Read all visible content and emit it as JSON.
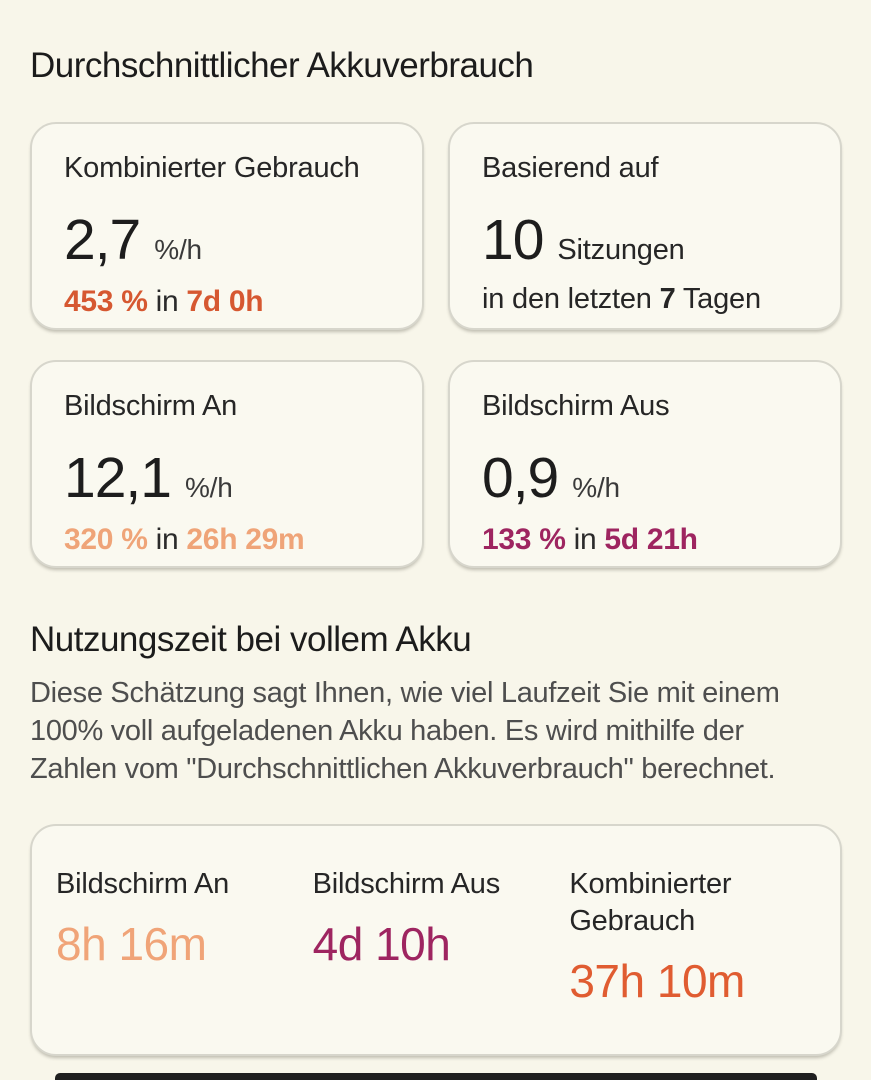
{
  "page": {
    "title": "Durchschnittlicher Akkuverbrauch",
    "background": "#f8f6ea",
    "bottom_bar_color": "#1f1f1f"
  },
  "stat_cards": [
    {
      "title": "Kombinierter Gebrauch",
      "value": "2,7",
      "unit": "%/h",
      "detail_amount": "453 %",
      "detail_connector": "in",
      "detail_duration": "7d 0h",
      "accent": "#d65831"
    },
    {
      "title": "Basierend auf",
      "value": "10",
      "unit": "Sitzungen",
      "line2_pre": "in den letzten",
      "line2_num": "7",
      "line2_post": "Tagen"
    },
    {
      "title": "Bildschirm An",
      "value": "12,1",
      "unit": "%/h",
      "detail_amount": "320 %",
      "detail_connector": "in",
      "detail_duration": "26h 29m",
      "accent": "#efa478"
    },
    {
      "title": "Bildschirm Aus",
      "value": "0,9",
      "unit": "%/h",
      "detail_amount": "133 %",
      "detail_connector": "in",
      "detail_duration": "5d 21h",
      "accent": "#9e2560"
    }
  ],
  "summary": {
    "title": "Nutzungszeit bei vollem Akku",
    "description": "Diese Schätzung sagt Ihnen, wie viel Laufzeit Sie mit einem 100% voll aufgeladenen Akku haben. Es wird mithilfe der Zahlen vom \"Durchschnittlichen Akkuverbrauch\" berechnet.",
    "items": [
      {
        "label": "Bildschirm An",
        "value": "8h 16m",
        "color": "#f0a478"
      },
      {
        "label": "Bildschirm Aus",
        "value": "4d 10h",
        "color": "#9e2560"
      },
      {
        "label": "Kombinierter Gebrauch",
        "value": "37h 10m",
        "color": "#e05c31"
      }
    ]
  }
}
